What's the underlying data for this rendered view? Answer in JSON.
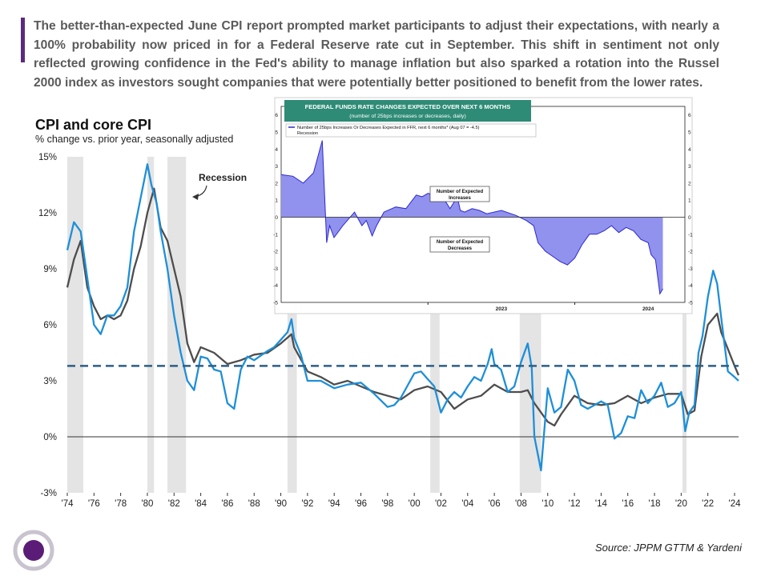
{
  "commentary": "The better-than-expected June CPI report prompted market participants to adjust their expectations, with nearly a 100% probability now priced in for a Federal Reserve rate cut in September. This shift in sentiment not only reflected growing confidence in the Fed's ability to manage inflation but also sparked a rotation into the Russel 2000 index  as investors sought companies that were potentially better positioned to benefit from the lower rates.",
  "source": "Source: JPPM GTTM & Yardeni",
  "colors": {
    "cpi": "#1e8fd8",
    "core_cpi": "#4d4d4d",
    "recession": "#e4e4e4",
    "dashed": "#2c5f86",
    "inset_fill": "#9191ee",
    "inset_banner": "#2e8b76",
    "accent": "#5b2a7e"
  },
  "chart_data": [
    {
      "type": "line",
      "title": "CPI and core CPI",
      "subtitle": "% change vs. prior year, seasonally adjusted",
      "ylim": [
        -3,
        15
      ],
      "xlim": [
        1974,
        2024.3
      ],
      "yticks": [
        "15%",
        "12%",
        "9%",
        "6%",
        "3%",
        "0%",
        "-3%"
      ],
      "xticks": [
        "'74",
        "'76",
        "'78",
        "'80",
        "'82",
        "'84",
        "'86",
        "'88",
        "'90",
        "'92",
        "'94",
        "'96",
        "'98",
        "'00",
        "'02",
        "'04",
        "'06",
        "'08",
        "'10",
        "'12",
        "'14",
        "'16",
        "'18",
        "'20",
        "'22",
        "'24"
      ],
      "reference_line": 3.8,
      "annotation": "Recession",
      "recessions": [
        [
          1974,
          1975.2
        ],
        [
          1980,
          1980.5
        ],
        [
          1981.5,
          1982.9
        ],
        [
          1990.5,
          1991.2
        ],
        [
          2001.2,
          2001.9
        ],
        [
          2007.9,
          2009.5
        ],
        [
          2020.1,
          2020.4
        ]
      ],
      "series": [
        {
          "name": "CPI",
          "x": [
            1974,
            1974.5,
            1975,
            1975.5,
            1976,
            1976.5,
            1977,
            1977.5,
            1978,
            1978.5,
            1979,
            1979.5,
            1980,
            1980.3,
            1980.7,
            1981,
            1981.5,
            1982,
            1982.5,
            1983,
            1983.5,
            1984,
            1984.5,
            1985,
            1985.5,
            1986,
            1986.5,
            1987,
            1987.5,
            1988,
            1989,
            1989.5,
            1990,
            1990.5,
            1990.8,
            1991,
            1991.5,
            1992,
            1993,
            1994,
            1995,
            1996,
            1997,
            1998,
            1998.5,
            1999,
            2000,
            2000.5,
            2001,
            2001.5,
            2002,
            2002.5,
            2003,
            2003.5,
            2004,
            2004.5,
            2005,
            2005.5,
            2005.8,
            2006,
            2006.5,
            2007,
            2007.5,
            2008,
            2008.5,
            2008.8,
            2009,
            2009.5,
            2010,
            2010.5,
            2011,
            2011.5,
            2012,
            2012.5,
            2013,
            2014,
            2014.5,
            2015,
            2015.5,
            2016,
            2016.5,
            2017,
            2017.5,
            2018,
            2018.5,
            2019,
            2019.5,
            2020,
            2020.3,
            2020.6,
            2021,
            2021.3,
            2021.6,
            2022,
            2022.4,
            2022.7,
            2023,
            2023.5,
            2024,
            2024.3
          ],
          "values": [
            10.0,
            11.5,
            11.0,
            8.5,
            6.0,
            5.5,
            6.5,
            6.5,
            7.0,
            8.0,
            11.0,
            12.8,
            14.6,
            13.5,
            12.5,
            11.0,
            9.0,
            6.5,
            4.5,
            3.0,
            2.5,
            4.3,
            4.2,
            3.6,
            3.5,
            1.8,
            1.5,
            3.6,
            4.3,
            4.1,
            4.6,
            4.8,
            5.2,
            5.6,
            6.3,
            5.3,
            4.4,
            3.0,
            3.0,
            2.6,
            2.8,
            2.9,
            2.3,
            1.6,
            1.7,
            2.1,
            3.4,
            3.5,
            3.1,
            2.7,
            1.3,
            2.0,
            2.4,
            2.1,
            2.7,
            3.2,
            3.0,
            3.9,
            4.7,
            3.9,
            3.6,
            2.4,
            2.7,
            4.0,
            5.0,
            3.7,
            0.0,
            -1.8,
            2.6,
            1.3,
            1.6,
            3.6,
            3.0,
            1.7,
            1.5,
            1.9,
            1.7,
            -0.1,
            0.2,
            1.1,
            1.0,
            2.5,
            1.8,
            2.2,
            2.9,
            1.6,
            1.8,
            2.4,
            0.3,
            1.3,
            1.7,
            4.5,
            5.4,
            7.5,
            8.9,
            8.2,
            6.4,
            3.5,
            3.2,
            3.0
          ]
        },
        {
          "name": "Core CPI",
          "x": [
            1974,
            1974.5,
            1975,
            1975.5,
            1976,
            1976.5,
            1977,
            1977.5,
            1978,
            1978.5,
            1979,
            1979.5,
            1980,
            1980.5,
            1981,
            1981.5,
            1982,
            1982.5,
            1983,
            1983.5,
            1984,
            1985,
            1986,
            1987,
            1988,
            1989,
            1990,
            1990.8,
            1991,
            1992,
            1993,
            1994,
            1995,
            1996,
            1997,
            1998,
            1999,
            2000,
            2001,
            2002,
            2003,
            2004,
            2005,
            2006,
            2007,
            2008,
            2008.5,
            2009,
            2010,
            2010.5,
            2011,
            2012,
            2013,
            2014,
            2015,
            2016,
            2017,
            2018,
            2019,
            2020,
            2020.5,
            2021,
            2021.5,
            2022,
            2022.7,
            2023,
            2023.5,
            2024,
            2024.3
          ],
          "values": [
            8.0,
            9.5,
            10.5,
            8.0,
            7.0,
            6.3,
            6.5,
            6.3,
            6.5,
            7.3,
            9.0,
            10.2,
            12.0,
            13.3,
            11.2,
            10.5,
            9.0,
            7.5,
            5.0,
            4.0,
            4.8,
            4.5,
            3.9,
            4.1,
            4.4,
            4.5,
            5.0,
            5.5,
            4.8,
            3.5,
            3.2,
            2.8,
            3.0,
            2.7,
            2.4,
            2.2,
            2.0,
            2.5,
            2.7,
            2.4,
            1.5,
            2.0,
            2.2,
            2.8,
            2.4,
            2.4,
            2.5,
            1.8,
            0.8,
            0.6,
            1.2,
            2.2,
            1.8,
            1.7,
            1.8,
            2.2,
            1.8,
            2.1,
            2.3,
            2.3,
            1.2,
            1.4,
            4.3,
            6.0,
            6.6,
            5.6,
            4.7,
            3.8,
            3.3
          ]
        }
      ]
    },
    {
      "type": "area",
      "title": "FEDERAL FUNDS RATE CHANGES EXPECTED OVER NEXT 6 MONTHS",
      "subtitle": "(number of 25bps increases or decreases, daily)",
      "legend": [
        "Number of 25bps Increases Or Decreases Expected in FFR, next 6 months* (Aug 07 = -4.5)",
        "Recession"
      ],
      "annotations": [
        "Number of Expected Increases",
        "Number of Expected Decreases"
      ],
      "ylim": [
        -5,
        6.5
      ],
      "yticks": [
        6,
        5,
        4,
        3,
        2,
        1,
        0,
        -1,
        -2,
        -3,
        -4,
        -5
      ],
      "xlim": [
        2022.0,
        2024.75
      ],
      "xticks": [
        "2023",
        "2024"
      ],
      "x": [
        2022.0,
        2022.08,
        2022.15,
        2022.22,
        2022.28,
        2022.31,
        2022.33,
        2022.36,
        2022.42,
        2022.5,
        2022.55,
        2022.58,
        2022.62,
        2022.65,
        2022.7,
        2022.78,
        2022.85,
        2022.92,
        2022.96,
        2023.0,
        2023.05,
        2023.1,
        2023.15,
        2023.2,
        2023.22,
        2023.25,
        2023.3,
        2023.35,
        2023.4,
        2023.5,
        2023.6,
        2023.67,
        2023.72,
        2023.75,
        2023.8,
        2023.85,
        2023.9,
        2023.95,
        2024.0,
        2024.05,
        2024.1,
        2024.15,
        2024.2,
        2024.25,
        2024.3,
        2024.35,
        2024.4,
        2024.45,
        2024.5,
        2024.52,
        2024.55,
        2024.58,
        2024.6
      ],
      "values": [
        2.5,
        2.4,
        2.0,
        2.6,
        4.5,
        -1.5,
        -0.5,
        -1.2,
        -0.5,
        0.3,
        -0.5,
        -0.2,
        -1.1,
        -0.5,
        0.3,
        0.6,
        0.5,
        1.3,
        1.2,
        1.4,
        1.3,
        1.2,
        0.5,
        1.2,
        0.4,
        0.3,
        0.5,
        0.4,
        0.2,
        0.4,
        0.1,
        -0.2,
        -0.5,
        -1.5,
        -2.0,
        -2.3,
        -2.6,
        -2.8,
        -2.4,
        -1.6,
        -1.0,
        -1.0,
        -0.8,
        -0.5,
        -0.9,
        -0.6,
        -0.8,
        -1.3,
        -1.5,
        -2.2,
        -2.5,
        -4.5,
        -4.2
      ]
    }
  ]
}
